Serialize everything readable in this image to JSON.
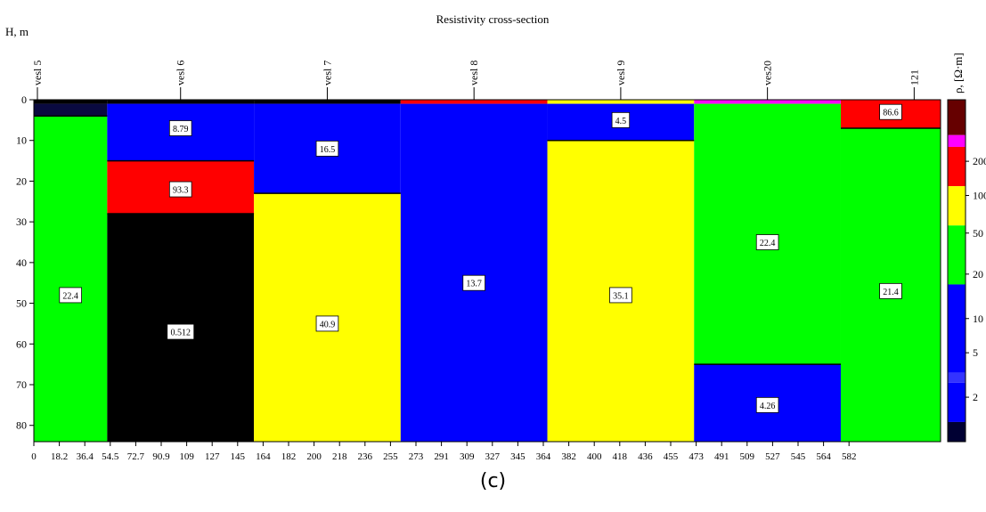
{
  "chart_data": {
    "type": "heatmap",
    "title": "Resistivity cross-section",
    "ylabel": "H, m",
    "legend_title": "ρ, [Ω·m]",
    "caption": "(c)",
    "xlim": [
      0,
      618
    ],
    "ylim": [
      0,
      84
    ],
    "x_tick_labels": [
      "0",
      "18.2",
      "36.4",
      "54.5",
      "72.7",
      "90.9",
      "109",
      "127",
      "145",
      "164",
      "182",
      "200",
      "218",
      "236",
      "255",
      "273",
      "291",
      "309",
      "327",
      "345",
      "364",
      "382",
      "400",
      "418",
      "436",
      "455",
      "473",
      "491",
      "509",
      "527",
      "545",
      "564",
      "582"
    ],
    "y_ticks": [
      0,
      10,
      20,
      30,
      40,
      50,
      60,
      70,
      80
    ],
    "stations": [
      {
        "label": "vesl 5",
        "x": 0
      },
      {
        "label": "vesl 6",
        "x": 100
      },
      {
        "label": "vesl 7",
        "x": 200
      },
      {
        "label": "vesl 8",
        "x": 300
      },
      {
        "label": "vesl 9",
        "x": 400
      },
      {
        "label": "ves20",
        "x": 500
      },
      {
        "label": "121",
        "x": 600
      }
    ],
    "layers": [
      {
        "x0": 0,
        "x1": 50,
        "y0": 0,
        "y1": 1,
        "color": "#000000"
      },
      {
        "x0": 0,
        "x1": 50,
        "y0": 1,
        "y1": 4,
        "color": "#0a0a40"
      },
      {
        "x0": 0,
        "x1": 50,
        "y0": 4,
        "y1": 84,
        "color": "#00ff00",
        "value": "22.4",
        "lx": 25,
        "ly": 48
      },
      {
        "x0": 50,
        "x1": 150,
        "y0": 0,
        "y1": 1,
        "color": "#000000"
      },
      {
        "x0": 50,
        "x1": 150,
        "y0": 1,
        "y1": 15,
        "color": "#0000ff",
        "value": "8.79",
        "lx": 100,
        "ly": 7
      },
      {
        "x0": 50,
        "x1": 150,
        "y0": 15,
        "y1": 28,
        "color": "#ff0000",
        "value": "93.3",
        "lx": 100,
        "ly": 22
      },
      {
        "x0": 50,
        "x1": 150,
        "y0": 28,
        "y1": 84,
        "color": "#000000",
        "value": "0.512",
        "lx": 100,
        "ly": 57
      },
      {
        "x0": 150,
        "x1": 250,
        "y0": 0,
        "y1": 1,
        "color": "#000000"
      },
      {
        "x0": 150,
        "x1": 250,
        "y0": 1,
        "y1": 23,
        "color": "#0000ff",
        "value": "16.5",
        "lx": 200,
        "ly": 12
      },
      {
        "x0": 150,
        "x1": 250,
        "y0": 23,
        "y1": 84,
        "color": "#ffff00",
        "value": "40.9",
        "lx": 200,
        "ly": 55
      },
      {
        "x0": 250,
        "x1": 350,
        "y0": 0,
        "y1": 1,
        "color": "#ff0000"
      },
      {
        "x0": 250,
        "x1": 350,
        "y0": 1,
        "y1": 84,
        "color": "#0000ff",
        "value": "13.7",
        "lx": 300,
        "ly": 45
      },
      {
        "x0": 350,
        "x1": 450,
        "y0": 0,
        "y1": 1,
        "color": "#ffff00"
      },
      {
        "x0": 350,
        "x1": 450,
        "y0": 1,
        "y1": 10,
        "color": "#0000ff",
        "value": "4.5",
        "lx": 400,
        "ly": 5
      },
      {
        "x0": 350,
        "x1": 450,
        "y0": 10,
        "y1": 84,
        "color": "#ffff00",
        "value": "35.1",
        "lx": 400,
        "ly": 48
      },
      {
        "x0": 450,
        "x1": 550,
        "y0": 0,
        "y1": 1,
        "color": "#ff00ff"
      },
      {
        "x0": 450,
        "x1": 550,
        "y0": 1,
        "y1": 65,
        "color": "#00ff00",
        "value": "22.4",
        "lx": 500,
        "ly": 35
      },
      {
        "x0": 450,
        "x1": 550,
        "y0": 65,
        "y1": 84,
        "color": "#0000ff",
        "value": "4.26",
        "lx": 500,
        "ly": 75
      },
      {
        "x0": 550,
        "x1": 618,
        "y0": 0,
        "y1": 7,
        "color": "#ff0000",
        "value": "86.6",
        "lx": 584,
        "ly": 3
      },
      {
        "x0": 550,
        "x1": 618,
        "y0": 7,
        "y1": 84,
        "color": "#00ff00",
        "value": "21.4",
        "lx": 584,
        "ly": 47
      }
    ],
    "color_scale": [
      {
        "color": "#000033",
        "weight": 1.0
      },
      {
        "color": "#0000ff",
        "weight": 2.0
      },
      {
        "color": "#3333ff",
        "weight": 0.5
      },
      {
        "color": "#0000ff",
        "weight": 4.5
      },
      {
        "color": "#00ff00",
        "weight": 3.0
      },
      {
        "color": "#ffff00",
        "weight": 2.0
      },
      {
        "color": "#ff0000",
        "weight": 2.0
      },
      {
        "color": "#ff00ff",
        "weight": 0.6
      },
      {
        "color": "#660000",
        "weight": 1.8
      }
    ],
    "color_scale_labels": [
      {
        "label": "200",
        "at": 0.18
      },
      {
        "label": "100",
        "at": 0.28
      },
      {
        "label": "50",
        "at": 0.39
      },
      {
        "label": "20",
        "at": 0.51
      },
      {
        "label": "10",
        "at": 0.64
      },
      {
        "label": "5",
        "at": 0.74
      },
      {
        "label": "2",
        "at": 0.87
      }
    ]
  }
}
